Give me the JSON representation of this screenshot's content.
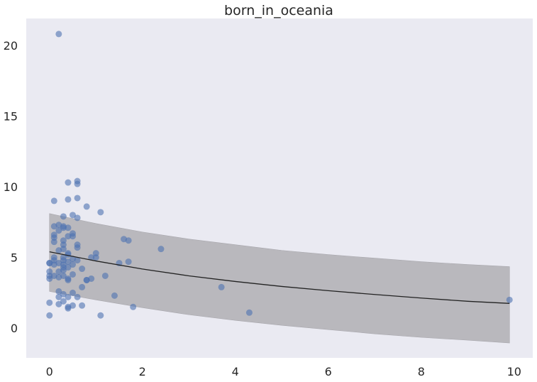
{
  "chart_data": {
    "type": "scatter",
    "title": "born_in_oceania",
    "xlabel": "",
    "ylabel": "",
    "xlim": [
      -0.5,
      10.4
    ],
    "ylim": [
      -2.1,
      21.9
    ],
    "xticks": [
      0,
      2,
      4,
      6,
      8,
      10
    ],
    "yticks": [
      0,
      5,
      10,
      15,
      20
    ],
    "grid": false,
    "background": "#eaeaf2",
    "point_color": "#4c72b0",
    "band_color": "#b9b8bd",
    "line_color": "#222222",
    "points": [
      [
        0.0,
        4.6
      ],
      [
        0.0,
        4.0
      ],
      [
        0.0,
        3.7
      ],
      [
        0.0,
        3.5
      ],
      [
        0.0,
        1.8
      ],
      [
        0.0,
        0.9
      ],
      [
        0.0,
        4.6
      ],
      [
        0.1,
        9.0
      ],
      [
        0.1,
        7.2
      ],
      [
        0.1,
        6.6
      ],
      [
        0.1,
        6.4
      ],
      [
        0.1,
        6.1
      ],
      [
        0.1,
        5.0
      ],
      [
        0.1,
        4.8
      ],
      [
        0.1,
        4.5
      ],
      [
        0.1,
        3.7
      ],
      [
        0.2,
        20.8
      ],
      [
        0.2,
        7.3
      ],
      [
        0.2,
        6.9
      ],
      [
        0.2,
        5.5
      ],
      [
        0.2,
        4.6
      ],
      [
        0.2,
        4.0
      ],
      [
        0.2,
        3.6
      ],
      [
        0.2,
        2.6
      ],
      [
        0.2,
        2.2
      ],
      [
        0.2,
        1.7
      ],
      [
        0.3,
        7.9
      ],
      [
        0.3,
        7.2
      ],
      [
        0.3,
        7.1
      ],
      [
        0.3,
        6.2
      ],
      [
        0.3,
        5.9
      ],
      [
        0.3,
        5.6
      ],
      [
        0.3,
        5.0
      ],
      [
        0.3,
        4.8
      ],
      [
        0.3,
        4.5
      ],
      [
        0.3,
        4.3
      ],
      [
        0.3,
        4.1
      ],
      [
        0.3,
        3.7
      ],
      [
        0.3,
        2.4
      ],
      [
        0.3,
        1.9
      ],
      [
        0.4,
        10.3
      ],
      [
        0.4,
        9.1
      ],
      [
        0.4,
        7.1
      ],
      [
        0.4,
        6.5
      ],
      [
        0.4,
        5.3
      ],
      [
        0.4,
        5.2
      ],
      [
        0.4,
        4.7
      ],
      [
        0.4,
        4.3
      ],
      [
        0.4,
        3.5
      ],
      [
        0.4,
        3.4
      ],
      [
        0.4,
        2.2
      ],
      [
        0.4,
        1.5
      ],
      [
        0.4,
        1.4
      ],
      [
        0.5,
        8.0
      ],
      [
        0.5,
        6.7
      ],
      [
        0.5,
        6.5
      ],
      [
        0.5,
        4.9
      ],
      [
        0.5,
        4.5
      ],
      [
        0.5,
        3.8
      ],
      [
        0.5,
        2.5
      ],
      [
        0.5,
        1.6
      ],
      [
        0.6,
        10.4
      ],
      [
        0.6,
        10.2
      ],
      [
        0.6,
        9.2
      ],
      [
        0.6,
        7.8
      ],
      [
        0.6,
        5.9
      ],
      [
        0.6,
        5.7
      ],
      [
        0.6,
        4.8
      ],
      [
        0.6,
        2.2
      ],
      [
        0.7,
        4.2
      ],
      [
        0.7,
        2.9
      ],
      [
        0.7,
        1.6
      ],
      [
        0.8,
        8.6
      ],
      [
        0.8,
        3.4
      ],
      [
        0.8,
        3.4
      ],
      [
        0.9,
        5.0
      ],
      [
        0.9,
        3.5
      ],
      [
        1.0,
        5.3
      ],
      [
        1.0,
        5.0
      ],
      [
        1.1,
        8.2
      ],
      [
        1.1,
        0.9
      ],
      [
        1.2,
        3.7
      ],
      [
        1.4,
        2.3
      ],
      [
        1.5,
        4.6
      ],
      [
        1.6,
        6.3
      ],
      [
        1.7,
        6.2
      ],
      [
        1.7,
        4.7
      ],
      [
        1.8,
        1.5
      ],
      [
        2.4,
        5.6
      ],
      [
        3.7,
        2.9
      ],
      [
        4.3,
        1.1
      ],
      [
        9.9,
        2.0
      ]
    ],
    "fit_line": {
      "x": [
        0.0,
        1.0,
        2.0,
        3.0,
        4.0,
        5.0,
        6.0,
        7.0,
        8.0,
        9.0,
        9.9
      ],
      "y": [
        5.4,
        4.75,
        4.18,
        3.7,
        3.3,
        2.95,
        2.65,
        2.38,
        2.13,
        1.9,
        1.75
      ]
    },
    "band": {
      "x": [
        0.0,
        1.0,
        2.0,
        3.0,
        4.0,
        5.0,
        6.0,
        7.0,
        8.0,
        9.0,
        9.9
      ],
      "upper": [
        8.1,
        7.4,
        6.8,
        6.3,
        5.9,
        5.5,
        5.2,
        4.95,
        4.7,
        4.5,
        4.35
      ],
      "lower": [
        2.6,
        2.0,
        1.45,
        0.95,
        0.55,
        0.2,
        -0.1,
        -0.4,
        -0.65,
        -0.85,
        -1.05
      ]
    }
  }
}
